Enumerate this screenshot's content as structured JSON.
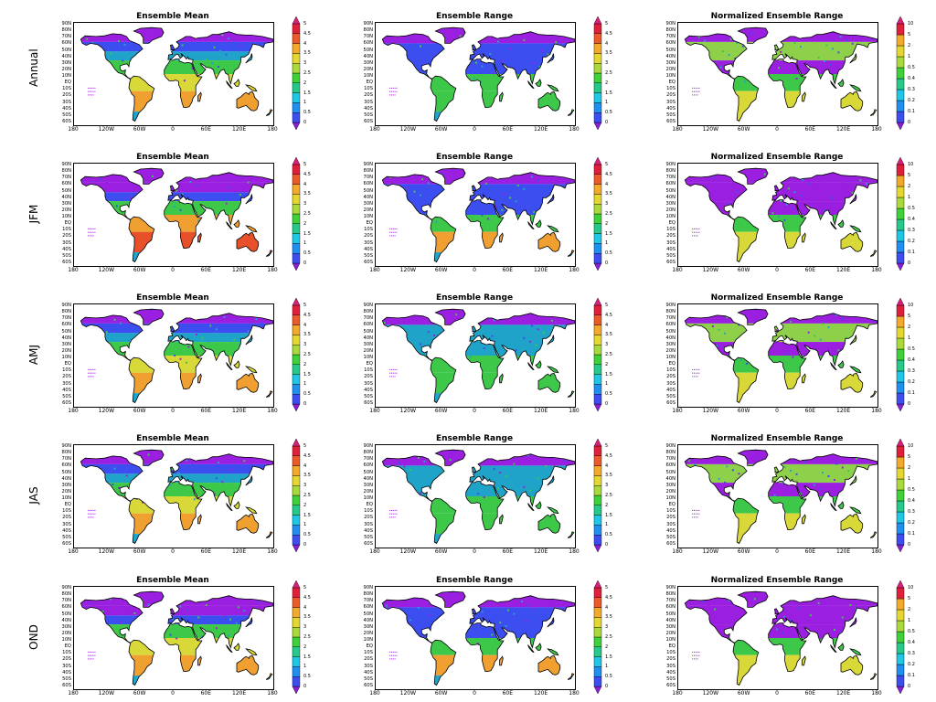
{
  "figure": {
    "rows": [
      {
        "label": "Annual"
      },
      {
        "label": "JFM"
      },
      {
        "label": "AMJ"
      },
      {
        "label": "JAS"
      },
      {
        "label": "OND"
      }
    ],
    "columns": [
      {
        "title": "Ensemble Mean",
        "scale": "mean"
      },
      {
        "title": "Ensemble Range",
        "scale": "range"
      },
      {
        "title": "Normalized Ensemble Range",
        "scale": "normalized"
      }
    ],
    "lat_ticks": [
      "90N",
      "80N",
      "70N",
      "60N",
      "50N",
      "40N",
      "30N",
      "20N",
      "10N",
      "EQ",
      "10S",
      "20S",
      "30S",
      "40S",
      "50S",
      "60S"
    ],
    "lon_ticks": [
      "180",
      "120W",
      "60W",
      "0",
      "60E",
      "120E",
      "180"
    ]
  },
  "colorbars": {
    "mean": {
      "labels": [
        "0",
        "0.5",
        "1",
        "1.5",
        "2",
        "2.5",
        "3",
        "3.5",
        "4",
        "4.5",
        "5"
      ],
      "colors": [
        "#8a1fd6",
        "#3d4ef0",
        "#1f8ff0",
        "#1fc7e6",
        "#25c98a",
        "#3ed13a",
        "#a9d93a",
        "#e6d630",
        "#f3a92a",
        "#ec5a2a",
        "#e0203a",
        "#d8207a"
      ]
    },
    "range": {
      "labels": [
        "0",
        "0.5",
        "1",
        "1.5",
        "2",
        "2.5",
        "3",
        "3.5",
        "4",
        "4.5",
        "5"
      ],
      "colors": [
        "#8a1fd6",
        "#3d4ef0",
        "#1f8ff0",
        "#1fc7e6",
        "#25c98a",
        "#3ed13a",
        "#a9d93a",
        "#e6d630",
        "#f3a92a",
        "#ec5a2a",
        "#e0203a",
        "#d8207a"
      ]
    },
    "normalized": {
      "labels": [
        "0",
        "0.1",
        "0.2",
        "0.3",
        "0.4",
        "0.5",
        "1",
        "2",
        "5",
        "10"
      ],
      "colors": [
        "#8a1fd6",
        "#3d4ef0",
        "#1f8ff0",
        "#1fc7e6",
        "#25c98a",
        "#3ed13a",
        "#a9d93a",
        "#e6d630",
        "#f3a92a",
        "#e0203a",
        "#d8207a"
      ]
    }
  },
  "colors": {
    "ocean": "#ffffff",
    "coast": "#000000",
    "polar": "#9a1fe0",
    "boreal": "#3d4ef0",
    "teal": "#1fa3c8",
    "green": "#3ec84a",
    "yellow": "#d8d838",
    "orange": "#f0a030",
    "red": "#e8502a",
    "lightgreen": "#8fd04a"
  }
}
